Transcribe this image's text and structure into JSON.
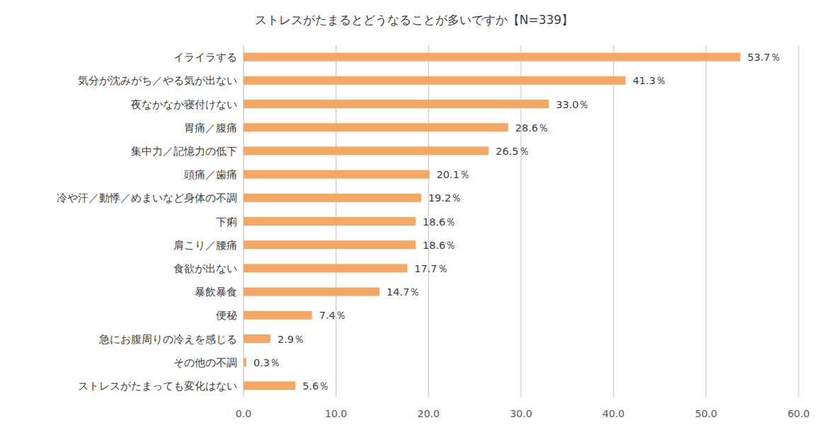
{
  "chart_data": {
    "type": "bar",
    "orientation": "horizontal",
    "title": "ストレスがたまるとどうなることが多いですか【N=339】",
    "categories": [
      "イライラする",
      "気分が沈みがち／やる気が出ない",
      "夜なかなか寝付けない",
      "胃痛／腹痛",
      "集中力／記憶力の低下",
      "頭痛／歯痛",
      "冷や汗／動悸／めまいなど身体の不調",
      "下痢",
      "肩こり／腰痛",
      "食欲が出ない",
      "暴飲暴食",
      "便秘",
      "急にお腹周りの冷えを感じる",
      "その他の不調",
      "ストレスがたまっても変化はない"
    ],
    "values": [
      53.7,
      41.3,
      33.0,
      28.6,
      26.5,
      20.1,
      19.2,
      18.6,
      18.6,
      17.7,
      14.7,
      7.4,
      2.9,
      0.3,
      5.6
    ],
    "value_labels": [
      "53.7％",
      "41.3％",
      "33.0％",
      "28.6％",
      "26.5％",
      "20.1％",
      "19.2％",
      "18.6％",
      "18.6％",
      "17.7％",
      "14.7％",
      "7.4％",
      "2.9％",
      "0.3％",
      "5.6％"
    ],
    "color": "#f5a866",
    "xlim": [
      0,
      60
    ],
    "xticks": [
      {
        "value": 0,
        "label": "0.0"
      },
      {
        "value": 10,
        "label": "10.0"
      },
      {
        "value": 20,
        "label": "20.0"
      },
      {
        "value": 30,
        "label": "30.0"
      },
      {
        "value": 40,
        "label": "40.0"
      },
      {
        "value": 50,
        "label": "50.0"
      },
      {
        "value": 60,
        "label": "60.0"
      }
    ],
    "grid": true,
    "data_labels": true
  }
}
